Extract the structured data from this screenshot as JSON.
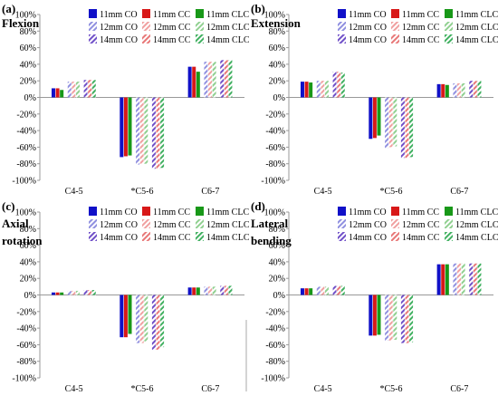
{
  "figure": {
    "series_legend": [
      "11mm CO",
      "11mm CC",
      "11mm CLC",
      "12mm CO",
      "12mm CC",
      "12mm CLC",
      "14mm CO",
      "14mm CC",
      "14mm CLC"
    ],
    "colors": {
      "11mm CO": "#1010c8",
      "11mm CC": "#d81818",
      "11mm CLC": "#189818",
      "12mm CO": "#9090e0",
      "12mm CC": "#f0a0a0",
      "12mm CLC": "#90d090",
      "14mm CO": "#7050c8",
      "14mm CC": "#e87878",
      "14mm CLC": "#40b060"
    }
  },
  "chart_data": [
    {
      "type": "bar",
      "panel_label": "(a)",
      "title_lines": [
        "Flexion"
      ],
      "categories": [
        "C4-5",
        "*C5-6",
        "C6-7"
      ],
      "ylim": [
        -100,
        100
      ],
      "yticks": [
        "100%",
        "80%",
        "60%",
        "40%",
        "20%",
        "0%",
        "-20%",
        "-40%",
        "-60%",
        "-80%",
        "-100%"
      ],
      "series": [
        {
          "name": "11mm CO",
          "values": [
            11,
            -72,
            37
          ]
        },
        {
          "name": "11mm CC",
          "values": [
            11,
            -71,
            37
          ]
        },
        {
          "name": "11mm CLC",
          "values": [
            9,
            -70,
            31
          ]
        },
        {
          "name": "12mm CO",
          "values": [
            19,
            -81,
            43
          ]
        },
        {
          "name": "12mm CC",
          "values": [
            19,
            -80,
            43
          ]
        },
        {
          "name": "12mm CLC",
          "values": [
            19,
            -80,
            43
          ]
        },
        {
          "name": "14mm CO",
          "values": [
            21,
            -86,
            45
          ]
        },
        {
          "name": "14mm CC",
          "values": [
            21,
            -86,
            45
          ]
        },
        {
          "name": "14mm CLC",
          "values": [
            21,
            -85,
            45
          ]
        }
      ]
    },
    {
      "type": "bar",
      "panel_label": "(b)",
      "title_lines": [
        "Extension"
      ],
      "categories": [
        "C4-5",
        "*C5-6",
        "C6-7"
      ],
      "ylim": [
        -100,
        100
      ],
      "yticks": [
        "100%",
        "80%",
        "60%",
        "40%",
        "20%",
        "0%",
        "-20%",
        "-40%",
        "-60%",
        "-80%",
        "-100%"
      ],
      "series": [
        {
          "name": "11mm CO",
          "values": [
            19,
            -50,
            16
          ]
        },
        {
          "name": "11mm CC",
          "values": [
            19,
            -49,
            16
          ]
        },
        {
          "name": "11mm CLC",
          "values": [
            18,
            -46,
            15
          ]
        },
        {
          "name": "12mm CO",
          "values": [
            20,
            -61,
            17
          ]
        },
        {
          "name": "12mm CC",
          "values": [
            20,
            -60,
            17
          ]
        },
        {
          "name": "12mm CLC",
          "values": [
            20,
            -59,
            17
          ]
        },
        {
          "name": "14mm CO",
          "values": [
            31,
            -73,
            20
          ]
        },
        {
          "name": "14mm CC",
          "values": [
            31,
            -73,
            20
          ]
        },
        {
          "name": "14mm CLC",
          "values": [
            30,
            -72,
            20
          ]
        }
      ]
    },
    {
      "type": "bar",
      "panel_label": "(c)",
      "title_lines": [
        "Axial",
        "rotation"
      ],
      "categories": [
        "C4-5",
        "*C5-6",
        "C6-7"
      ],
      "ylim": [
        -100,
        100
      ],
      "yticks": [
        "100%",
        "80%",
        "60%",
        "40%",
        "20%",
        "0%",
        "-20%",
        "-40%",
        "-60%",
        "-80%",
        "-100%"
      ],
      "series": [
        {
          "name": "11mm CO",
          "values": [
            3,
            -51,
            9
          ]
        },
        {
          "name": "11mm CC",
          "values": [
            3,
            -51,
            9
          ]
        },
        {
          "name": "11mm CLC",
          "values": [
            3,
            -47,
            9
          ]
        },
        {
          "name": "12mm CO",
          "values": [
            5,
            -58,
            10
          ]
        },
        {
          "name": "12mm CC",
          "values": [
            5,
            -58,
            10
          ]
        },
        {
          "name": "12mm CLC",
          "values": [
            5,
            -56,
            10
          ]
        },
        {
          "name": "14mm CO",
          "values": [
            6,
            -66,
            11
          ]
        },
        {
          "name": "14mm CC",
          "values": [
            6,
            -66,
            11
          ]
        },
        {
          "name": "14mm CLC",
          "values": [
            6,
            -63,
            11
          ]
        }
      ]
    },
    {
      "type": "bar",
      "panel_label": "(d)",
      "title_lines": [
        "Lateral",
        "bending"
      ],
      "categories": [
        "C4-5",
        "*C5-6",
        "C6-7"
      ],
      "ylim": [
        -100,
        100
      ],
      "yticks": [
        "100%",
        "80%",
        "60%",
        "40%",
        "20%",
        "0%",
        "-20%",
        "-40%",
        "-60%",
        "-80%",
        "-100%"
      ],
      "series": [
        {
          "name": "11mm CO",
          "values": [
            8,
            -49,
            37
          ]
        },
        {
          "name": "11mm CC",
          "values": [
            8,
            -49,
            37
          ]
        },
        {
          "name": "11mm CLC",
          "values": [
            8,
            -48,
            37
          ]
        },
        {
          "name": "12mm CO",
          "values": [
            10,
            -55,
            38
          ]
        },
        {
          "name": "12mm CC",
          "values": [
            10,
            -55,
            38
          ]
        },
        {
          "name": "12mm CLC",
          "values": [
            10,
            -54,
            38
          ]
        },
        {
          "name": "14mm CO",
          "values": [
            11,
            -58,
            38
          ]
        },
        {
          "name": "14mm CC",
          "values": [
            11,
            -58,
            38
          ]
        },
        {
          "name": "14mm CLC",
          "values": [
            11,
            -57,
            38
          ]
        }
      ]
    }
  ]
}
